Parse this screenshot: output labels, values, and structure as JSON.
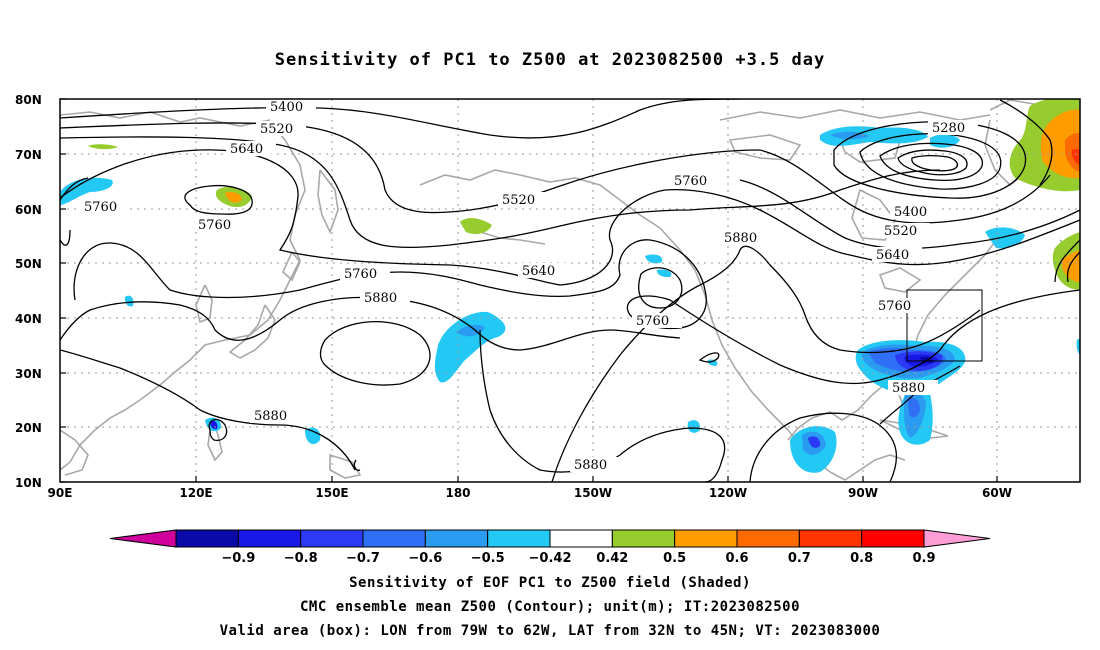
{
  "title": "Sensitivity of PC1 to Z500 at 2023082500 +3.5 day",
  "map": {
    "lat_labels": [
      "80N",
      "70N",
      "60N",
      "50N",
      "40N",
      "30N",
      "20N",
      "10N"
    ],
    "lon_labels": [
      "90E",
      "120E",
      "150E",
      "180",
      "150W",
      "120W",
      "90W",
      "60W"
    ],
    "contour_labels": [
      {
        "id": "c5400a",
        "text": "5400"
      },
      {
        "id": "c5520a",
        "text": "5520"
      },
      {
        "id": "c5640a",
        "text": "5640"
      },
      {
        "id": "c5760a",
        "text": "5760"
      },
      {
        "id": "c5760b",
        "text": "5760"
      },
      {
        "id": "c5520b",
        "text": "5520"
      },
      {
        "id": "c5760c",
        "text": "5760"
      },
      {
        "id": "c5640b",
        "text": "5640"
      },
      {
        "id": "c5880a",
        "text": "5880"
      },
      {
        "id": "c5760d",
        "text": "5760"
      },
      {
        "id": "c5880b",
        "text": "5880"
      },
      {
        "id": "c5280a",
        "text": "5280"
      },
      {
        "id": "c5400b",
        "text": "5400"
      },
      {
        "id": "c5520c",
        "text": "5520"
      },
      {
        "id": "c5640c",
        "text": "5640"
      },
      {
        "id": "c5760e",
        "text": "5760"
      },
      {
        "id": "c5880c",
        "text": "5880"
      },
      {
        "id": "c5880d",
        "text": "5880"
      },
      {
        "id": "c5880e",
        "text": "5880"
      }
    ]
  },
  "colorbar": {
    "ticks": [
      "-0.9",
      "-0.8",
      "-0.7",
      "-0.6",
      "-0.5",
      "-0.42",
      "0.42",
      "0.5",
      "0.6",
      "0.7",
      "0.8",
      "0.9"
    ],
    "colors": [
      "#d0009c",
      "#0a0aa8",
      "#1717e6",
      "#2b3bf5",
      "#2f6ff5",
      "#2a9bf0",
      "#23c8f5",
      "#ffffff",
      "#96cc2e",
      "#ff9c00",
      "#ff6a00",
      "#ff3500",
      "#ff0000",
      "#ff9ed6"
    ]
  },
  "footer": {
    "line1": "Sensitivity of EOF PC1 to Z500 field (Shaded)",
    "line2": "CMC ensemble mean Z500 (Contour); unit(m); IT:2023082500",
    "line3": "Valid area (box): LON from 79W to 62W, LAT from 32N to 45N; VT: 2023083000"
  }
}
